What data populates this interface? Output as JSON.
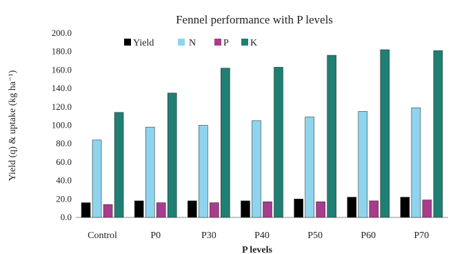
{
  "chart_data": {
    "type": "bar",
    "title": "Fennel performance with P levels",
    "xlabel": "P levels",
    "ylabel": "Yield (q) & uptake (kg ha⁻¹)",
    "ylim": [
      0,
      200
    ],
    "yticks": [
      "0.0",
      "20.0",
      "40.0",
      "60.0",
      "80.0",
      "100.0",
      "120.0",
      "140.0",
      "160.0",
      "180.0",
      "200.0"
    ],
    "grid": false,
    "legend_position": "top",
    "categories": [
      "Control",
      "P0",
      "P30",
      "P40",
      "P50",
      "P60",
      "P70"
    ],
    "series": [
      {
        "name": "Yield",
        "color": "#000000",
        "values": [
          16,
          18,
          18,
          18,
          20,
          22,
          22
        ]
      },
      {
        "name": "N",
        "color": "#8fd4ee",
        "values": [
          84,
          98,
          100,
          105,
          109,
          115,
          119
        ]
      },
      {
        "name": "P",
        "color": "#a83c8e",
        "values": [
          14,
          16,
          16,
          17,
          17,
          18,
          19
        ]
      },
      {
        "name": "K",
        "color": "#1f7f73",
        "values": [
          114,
          135,
          162,
          163,
          176,
          182,
          181
        ]
      }
    ]
  }
}
